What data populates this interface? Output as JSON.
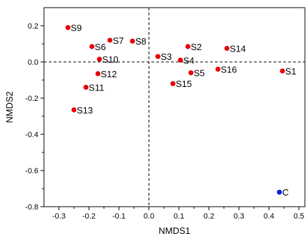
{
  "chart_data": {
    "type": "scatter",
    "xlabel": "NMDS1",
    "ylabel": "NMDS2",
    "xlim": [
      -0.35,
      0.52
    ],
    "ylim": [
      -0.8,
      0.3
    ],
    "x_ticks": [
      -0.3,
      -0.2,
      -0.1,
      0.0,
      0.1,
      0.2,
      0.3,
      0.4,
      0.5
    ],
    "x_tick_labels": [
      "-0.3",
      "-0.2",
      "-0.1",
      "0.0",
      "0.1",
      "0.2",
      "0.3",
      "0.4",
      "0.5"
    ],
    "y_ticks": [
      0.2,
      0.0,
      -0.2,
      -0.4,
      -0.6,
      -0.8
    ],
    "y_tick_labels": [
      "0.2",
      "0.0",
      "-0.2",
      "-0.4",
      "-0.6",
      "-0.8"
    ],
    "reference_lines": {
      "x": 0.0,
      "y": 0.0,
      "style": "dashed"
    },
    "colors": {
      "samples": "#e8000b",
      "control": "#0021e0"
    },
    "points": [
      {
        "label": "S9",
        "x": -0.27,
        "y": 0.19,
        "group": "samples"
      },
      {
        "label": "S6",
        "x": -0.19,
        "y": 0.085,
        "group": "samples"
      },
      {
        "label": "S7",
        "x": -0.13,
        "y": 0.12,
        "group": "samples"
      },
      {
        "label": "S8",
        "x": -0.055,
        "y": 0.115,
        "group": "samples"
      },
      {
        "label": "S10",
        "x": -0.165,
        "y": 0.015,
        "group": "samples"
      },
      {
        "label": "S12",
        "x": -0.17,
        "y": -0.065,
        "group": "samples"
      },
      {
        "label": "S11",
        "x": -0.21,
        "y": -0.14,
        "group": "samples"
      },
      {
        "label": "S13",
        "x": -0.25,
        "y": -0.265,
        "group": "samples"
      },
      {
        "label": "S3",
        "x": 0.03,
        "y": 0.03,
        "group": "samples"
      },
      {
        "label": "S2",
        "x": 0.13,
        "y": 0.085,
        "group": "samples"
      },
      {
        "label": "S4",
        "x": 0.105,
        "y": 0.01,
        "group": "samples"
      },
      {
        "label": "S5",
        "x": 0.14,
        "y": -0.06,
        "group": "samples"
      },
      {
        "label": "S15",
        "x": 0.08,
        "y": -0.12,
        "group": "samples"
      },
      {
        "label": "S16",
        "x": 0.23,
        "y": -0.04,
        "group": "samples"
      },
      {
        "label": "S14",
        "x": 0.26,
        "y": 0.075,
        "group": "samples"
      },
      {
        "label": "S1",
        "x": 0.445,
        "y": -0.05,
        "group": "samples"
      },
      {
        "label": "C",
        "x": 0.435,
        "y": -0.72,
        "group": "control"
      }
    ]
  }
}
